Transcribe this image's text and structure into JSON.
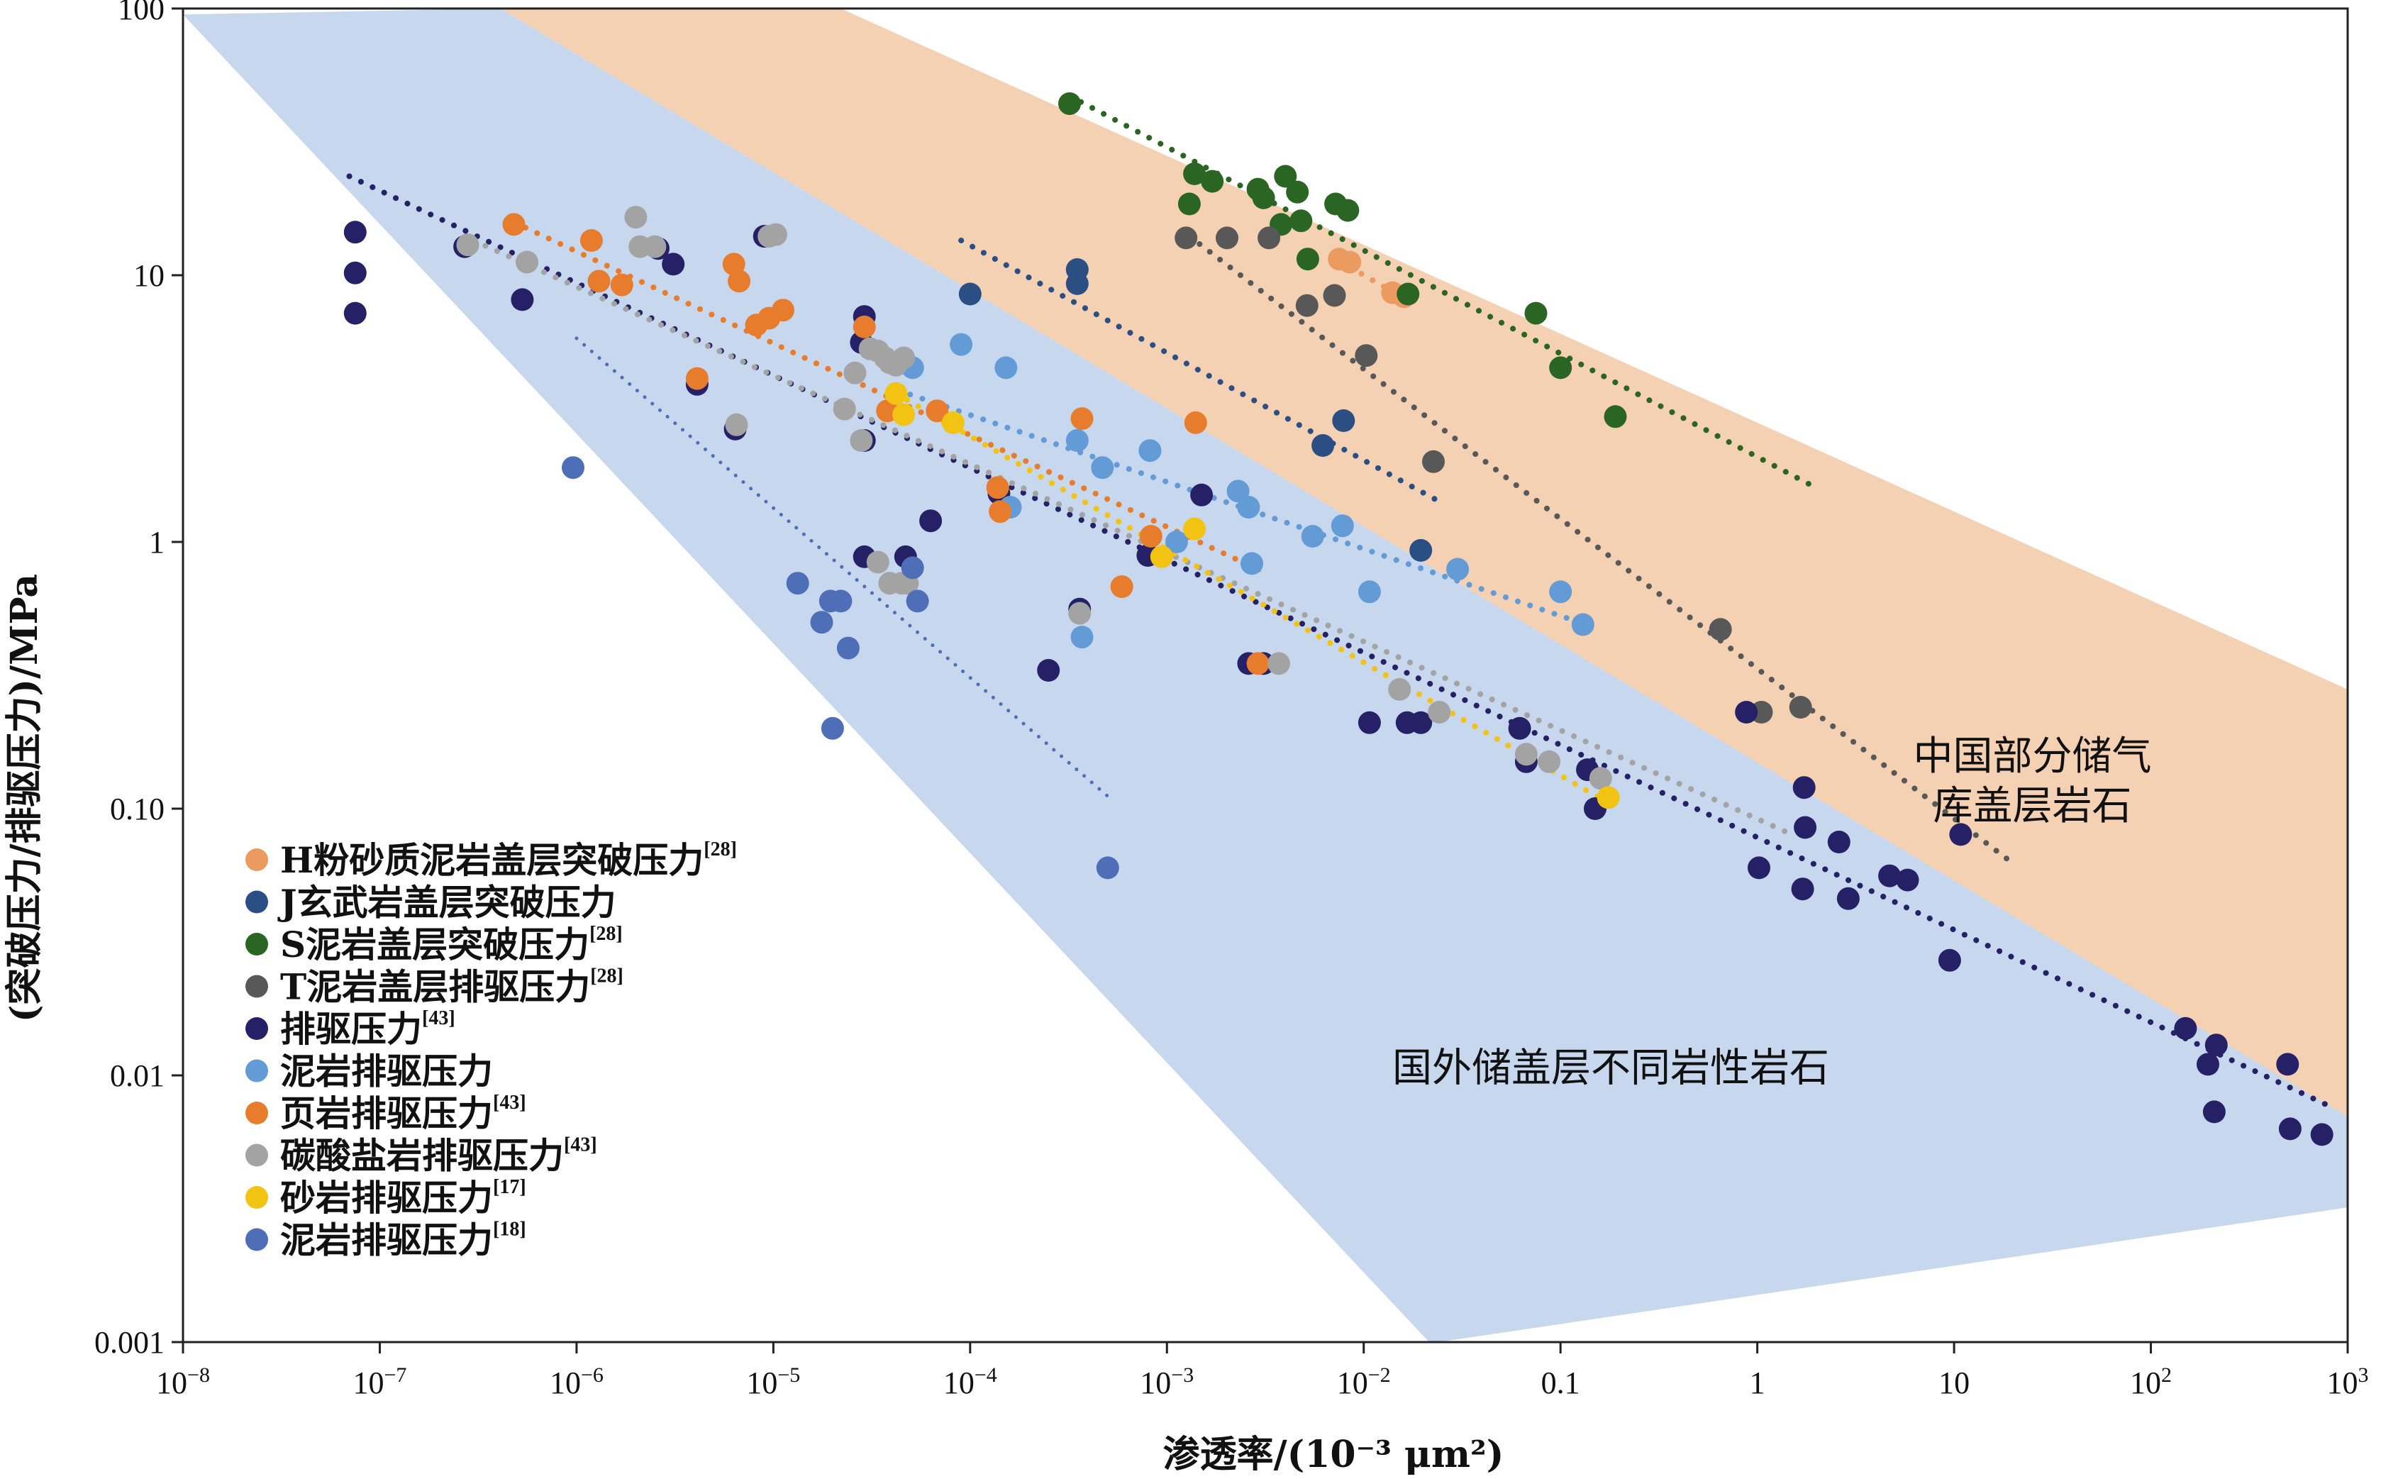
{
  "chart_data": {
    "type": "scatter",
    "xlabel": "渗透率/(10⁻³ μm²)",
    "ylabel": "(突破压力/排驱压力)/MPa",
    "xscale": "log",
    "yscale": "log",
    "xlim": [
      1e-08,
      1000
    ],
    "ylim": [
      0.001,
      100
    ],
    "grid": false,
    "legend_position": "bottom-left",
    "x_ticks": [
      {
        "v": 1e-08,
        "label": "10",
        "exp": "−8"
      },
      {
        "v": 1e-07,
        "label": "10",
        "exp": "−7"
      },
      {
        "v": 1e-06,
        "label": "10",
        "exp": "−6"
      },
      {
        "v": 1e-05,
        "label": "10",
        "exp": "−5"
      },
      {
        "v": 0.0001,
        "label": "10",
        "exp": "−4"
      },
      {
        "v": 0.001,
        "label": "10",
        "exp": "−3"
      },
      {
        "v": 0.01,
        "label": "10",
        "exp": "−2"
      },
      {
        "v": 0.1,
        "label": "0.1",
        "exp": ""
      },
      {
        "v": 1,
        "label": "1",
        "exp": ""
      },
      {
        "v": 10,
        "label": "10",
        "exp": ""
      },
      {
        "v": 100,
        "label": "10",
        "exp": "2"
      },
      {
        "v": 1000,
        "label": "10",
        "exp": "3"
      }
    ],
    "y_ticks": [
      {
        "v": 100,
        "label": "100"
      },
      {
        "v": 10,
        "label": "10"
      },
      {
        "v": 1,
        "label": "1"
      },
      {
        "v": 0.1,
        "label": "0.10"
      },
      {
        "v": 0.01,
        "label": "0.01"
      },
      {
        "v": 0.001,
        "label": "0.001"
      }
    ],
    "regions": [
      {
        "label_lines": [
          "中国部分储气",
          "库盖层岩石"
        ],
        "color": "#f5d1b4",
        "label_at": [
          25,
          0.14
        ],
        "polygon": [
          [
            4.1e-07,
            100
          ],
          [
            2.2e-05,
            100
          ],
          [
            1000,
            0.28
          ],
          [
            1000,
            0.007
          ]
        ]
      },
      {
        "label_lines": [
          "国外储盖层不同岩性岩石"
        ],
        "color": "#c7d7ee",
        "label_at": [
          0.18,
          0.0095
        ],
        "polygon": [
          [
            1e-08,
            95
          ],
          [
            4.1e-07,
            100
          ],
          [
            1000,
            0.007
          ],
          [
            1000,
            0.0032
          ],
          [
            0.024,
            0.001
          ],
          [
            0.0215,
            0.001
          ]
        ]
      }
    ],
    "overlap_color": "#b7a9b0",
    "series": [
      {
        "name": "H粉砂质泥岩盖层突破压力",
        "ref": "[28]",
        "color": "#eb9a60",
        "points": [
          [
            0.0085,
            11.2
          ],
          [
            0.0075,
            11.5
          ],
          [
            0.016,
            8.3
          ],
          [
            0.014,
            8.6
          ]
        ],
        "trend": [
          [
            0.0075,
            11.3
          ],
          [
            0.017,
            8.0
          ]
        ]
      },
      {
        "name": "J玄武岩盖层突破压力",
        "ref": "",
        "color": "#2b4f82",
        "points": [
          [
            0.00035,
            10.5
          ],
          [
            0.00035,
            9.3
          ],
          [
            0.0001,
            8.5
          ],
          [
            0.0079,
            2.85
          ],
          [
            0.0062,
            2.3
          ],
          [
            0.0195,
            0.93
          ]
        ],
        "trend": [
          [
            9e-05,
            13.5
          ],
          [
            0.025,
            1.4
          ]
        ]
      },
      {
        "name": "S泥岩盖层突破压力",
        "ref": "[28]",
        "color": "#2b6523",
        "points": [
          [
            0.00032,
            44
          ],
          [
            0.00138,
            24
          ],
          [
            0.0017,
            22.5
          ],
          [
            0.0013,
            18.5
          ],
          [
            0.0029,
            21.0
          ],
          [
            0.0031,
            19.5
          ],
          [
            0.004,
            23.5
          ],
          [
            0.0046,
            20.5
          ],
          [
            0.0048,
            16.0
          ],
          [
            0.0038,
            15.5
          ],
          [
            0.0072,
            18.5
          ],
          [
            0.0083,
            17.5
          ],
          [
            0.0052,
            11.5
          ],
          [
            0.0168,
            8.5
          ],
          [
            0.075,
            7.2
          ],
          [
            0.1,
            4.5
          ],
          [
            0.19,
            2.95
          ]
        ],
        "trend": [
          [
            0.00032,
            47
          ],
          [
            1.98,
            1.6
          ]
        ]
      },
      {
        "name": "T泥岩盖层排驱压力",
        "ref": "[28]",
        "color": "#585858",
        "points": [
          [
            0.00125,
            13.8
          ],
          [
            0.00202,
            13.8
          ],
          [
            0.0033,
            13.8
          ],
          [
            0.00515,
            7.7
          ],
          [
            0.0071,
            8.4
          ],
          [
            0.0103,
            5.0
          ],
          [
            0.0226,
            2.0
          ],
          [
            0.65,
            0.47
          ],
          [
            1.05,
            0.23
          ],
          [
            1.66,
            0.24
          ]
        ],
        "trend": [
          [
            0.0013,
            14
          ],
          [
            18.5,
            0.065
          ]
        ]
      },
      {
        "name": "排驱压力",
        "ref": "[43]",
        "color": "#262166",
        "points": [
          [
            7.5e-08,
            14.5
          ],
          [
            7.5e-08,
            10.2
          ],
          [
            7.5e-08,
            7.2
          ],
          [
            2.7e-07,
            12.8
          ],
          [
            5.3e-07,
            8.1
          ],
          [
            2.6e-06,
            12.6
          ],
          [
            3.1e-06,
            11.0
          ],
          [
            4.1e-06,
            3.9
          ],
          [
            6.4e-06,
            2.65
          ],
          [
            9e-06,
            14.0
          ],
          [
            2.9e-05,
            7.0
          ],
          [
            2.8e-05,
            5.6
          ],
          [
            2.9e-05,
            2.4
          ],
          [
            2.9e-05,
            0.88
          ],
          [
            4.7e-05,
            0.88
          ],
          [
            6.3e-05,
            1.2
          ],
          [
            0.00014,
            1.52
          ],
          [
            0.00025,
            0.33
          ],
          [
            0.00036,
            0.56
          ],
          [
            0.0008,
            0.89
          ],
          [
            0.0015,
            1.5
          ],
          [
            0.0026,
            0.35
          ],
          [
            0.0031,
            0.35
          ],
          [
            0.0107,
            0.21
          ],
          [
            0.0166,
            0.21
          ],
          [
            0.0195,
            0.21
          ],
          [
            0.062,
            0.2
          ],
          [
            0.067,
            0.15
          ],
          [
            0.137,
            0.14
          ],
          [
            0.15,
            0.1
          ],
          [
            0.88,
            0.23
          ],
          [
            1.02,
            0.06
          ],
          [
            1.73,
            0.12
          ],
          [
            1.75,
            0.085
          ],
          [
            1.7,
            0.05
          ],
          [
            2.6,
            0.075
          ],
          [
            2.9,
            0.046
          ],
          [
            4.7,
            0.056
          ],
          [
            5.8,
            0.054
          ],
          [
            9.5,
            0.027
          ],
          [
            10.8,
            0.08
          ],
          [
            150,
            0.015
          ],
          [
            195,
            0.011
          ],
          [
            210,
            0.0073
          ],
          [
            215,
            0.013
          ],
          [
            495,
            0.011
          ],
          [
            510,
            0.0063
          ],
          [
            740,
            0.006
          ]
        ],
        "trend": [
          [
            7e-08,
            23.5
          ],
          [
            770,
            0.0078
          ]
        ]
      },
      {
        "name": "泥岩排驱压力",
        "ref": "",
        "color": "#629bd6",
        "points": [
          [
            5.1e-05,
            4.5
          ],
          [
            9e-05,
            5.5
          ],
          [
            0.000152,
            4.5
          ],
          [
            0.00016,
            1.35
          ],
          [
            0.00035,
            2.4
          ],
          [
            0.00047,
            1.9
          ],
          [
            0.00082,
            2.2
          ],
          [
            0.00112,
            1.0
          ],
          [
            0.0023,
            1.55
          ],
          [
            0.0026,
            1.35
          ],
          [
            0.0027,
            0.83
          ],
          [
            0.0055,
            1.05
          ],
          [
            0.0078,
            1.15
          ],
          [
            0.0107,
            0.65
          ],
          [
            0.03,
            0.79
          ],
          [
            0.00037,
            0.44
          ],
          [
            0.1,
            0.65
          ],
          [
            0.13,
            0.49
          ]
        ],
        "trend": [
          [
            4.3e-05,
            3.7
          ],
          [
            0.135,
            0.49
          ]
        ]
      },
      {
        "name": "页岩排驱压力",
        "ref": "[43]",
        "color": "#e87c2d",
        "points": [
          [
            4.8e-07,
            15.5
          ],
          [
            1.19e-06,
            13.5
          ],
          [
            1.3e-06,
            9.5
          ],
          [
            1.7e-06,
            9.2
          ],
          [
            4.1e-06,
            4.1
          ],
          [
            6.3e-06,
            11.0
          ],
          [
            6.7e-06,
            9.5
          ],
          [
            8.2e-06,
            6.5
          ],
          [
            9.5e-06,
            6.9
          ],
          [
            1.12e-05,
            7.4
          ],
          [
            2.9e-05,
            6.4
          ],
          [
            3.8e-05,
            3.1
          ],
          [
            6.8e-05,
            3.1
          ],
          [
            0.000138,
            1.6
          ],
          [
            0.000142,
            1.3
          ],
          [
            0.00037,
            2.9
          ],
          [
            0.00059,
            0.68
          ],
          [
            0.00083,
            1.05
          ],
          [
            0.0014,
            2.8
          ],
          [
            0.0029,
            0.35
          ]
        ],
        "trend": [
          [
            4.8e-07,
            15.8
          ],
          [
            0.003,
            0.78
          ]
        ]
      },
      {
        "name": "碳酸盐岩排驱压力",
        "ref": "[43]",
        "color": "#a3a3a3",
        "points": [
          [
            2.8e-07,
            13.0
          ],
          [
            5.6e-07,
            11.2
          ],
          [
            2e-06,
            16.5
          ],
          [
            2.1e-06,
            12.8
          ],
          [
            2.5e-06,
            12.8
          ],
          [
            6.5e-06,
            2.75
          ],
          [
            9.5e-06,
            14.0
          ],
          [
            1.03e-05,
            14.2
          ],
          [
            2.3e-05,
            3.15
          ],
          [
            2.6e-05,
            4.3
          ],
          [
            2.8e-05,
            2.4
          ],
          [
            3.1e-05,
            5.3
          ],
          [
            3.4e-05,
            5.2
          ],
          [
            3.7e-05,
            4.9
          ],
          [
            3.9e-05,
            4.7
          ],
          [
            4.2e-05,
            4.6
          ],
          [
            4.6e-05,
            4.9
          ],
          [
            3.4e-05,
            0.84
          ],
          [
            3.9e-05,
            0.7
          ],
          [
            4.5e-05,
            0.7
          ],
          [
            4.8e-05,
            0.7
          ],
          [
            0.00036,
            0.54
          ],
          [
            0.0037,
            0.35
          ],
          [
            0.0152,
            0.28
          ],
          [
            0.0242,
            0.23
          ],
          [
            0.067,
            0.16
          ],
          [
            0.0875,
            0.15
          ],
          [
            0.16,
            0.13
          ]
        ],
        "trend": [
          [
            3e-07,
            13.5
          ],
          [
            1.5,
            0.08
          ]
        ]
      },
      {
        "name": "砂岩排驱压力",
        "ref": "[17]",
        "color": "#f2c312",
        "points": [
          [
            4.2e-05,
            3.6
          ],
          [
            4.6e-05,
            3.0
          ],
          [
            8.2e-05,
            2.8
          ],
          [
            0.00094,
            0.88
          ],
          [
            0.00138,
            1.12
          ],
          [
            0.175,
            0.11
          ]
        ],
        "trend": [
          [
            4.2e-05,
            3.6
          ],
          [
            0.175,
            0.105
          ]
        ]
      },
      {
        "name": "泥岩排驱压力",
        "ref": "[18]",
        "color": "#4e6fb7",
        "points": [
          [
            9.6e-07,
            1.9
          ],
          [
            1.33e-05,
            0.7
          ],
          [
            1.76e-05,
            0.5
          ],
          [
            1.95e-05,
            0.6
          ],
          [
            2.2e-05,
            0.6
          ],
          [
            2.4e-05,
            0.4
          ],
          [
            2e-05,
            0.2
          ],
          [
            5.1e-05,
            0.8
          ],
          [
            5.4e-05,
            0.6
          ],
          [
            0.0005,
            0.06
          ]
        ],
        "trend": [
          [
            1e-06,
            5.8
          ],
          [
            0.00051,
            0.11
          ]
        ]
      }
    ]
  }
}
